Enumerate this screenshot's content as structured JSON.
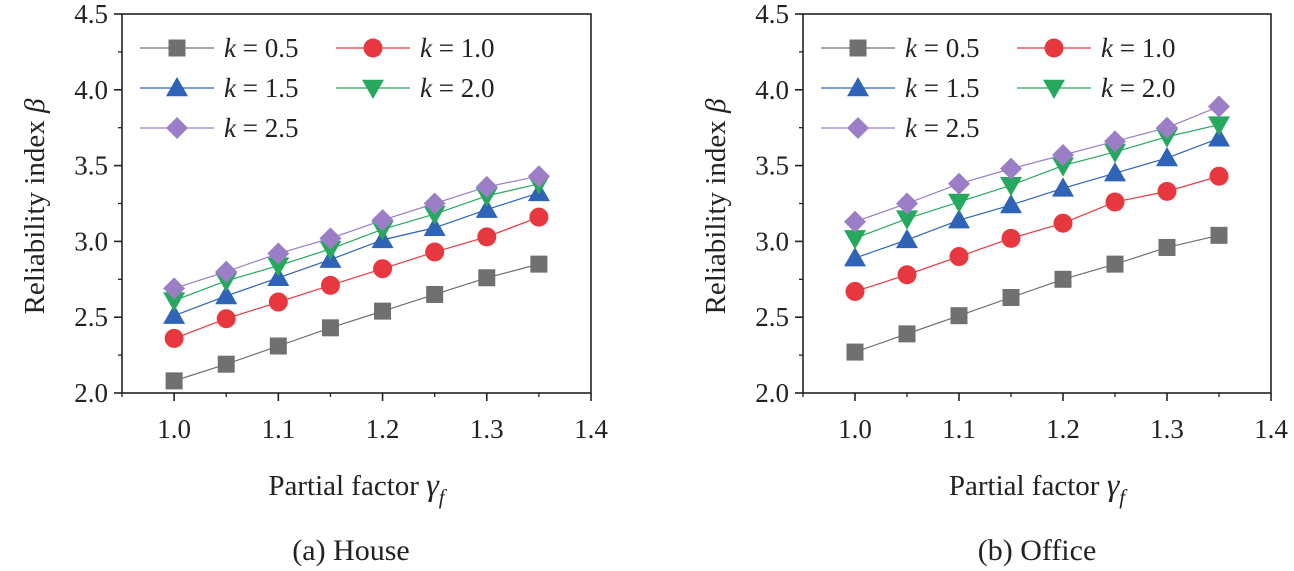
{
  "chart_data": [
    {
      "type": "line",
      "caption": "(a) House",
      "xlabel": "Partial factor",
      "xlabel_symbol": "γ",
      "xlabel_subscript": "f",
      "ylabel": "Reliability index",
      "ylabel_symbol": "β",
      "xlim": [
        0.95,
        1.4
      ],
      "ylim": [
        2.0,
        4.5
      ],
      "xticks": [
        "1.0",
        "1.1",
        "1.2",
        "1.3",
        "1.4"
      ],
      "yticks": [
        "2.0",
        "2.5",
        "3.0",
        "3.5",
        "4.0",
        "4.5"
      ],
      "x": [
        1.0,
        1.05,
        1.1,
        1.15,
        1.2,
        1.25,
        1.3,
        1.35
      ],
      "legend_position": "top-left",
      "series": [
        {
          "name": "k = 0.5",
          "k_symbol": "k",
          "k_value": "= 0.5",
          "marker": "square",
          "color": "#707070",
          "values": [
            2.08,
            2.19,
            2.31,
            2.43,
            2.54,
            2.65,
            2.76,
            2.85
          ]
        },
        {
          "name": "k = 1.0",
          "k_symbol": "k",
          "k_value": "= 1.0",
          "marker": "circle",
          "color": "#e8383f",
          "values": [
            2.36,
            2.49,
            2.6,
            2.71,
            2.82,
            2.93,
            3.03,
            3.16
          ]
        },
        {
          "name": "k = 1.5",
          "k_symbol": "k",
          "k_value": "= 1.5",
          "marker": "triangle-up",
          "color": "#2e63b8",
          "values": [
            2.51,
            2.64,
            2.76,
            2.88,
            3.01,
            3.09,
            3.21,
            3.32
          ]
        },
        {
          "name": "k = 2.0",
          "k_symbol": "k",
          "k_value": "= 2.0",
          "marker": "triangle-down",
          "color": "#27a85f",
          "values": [
            2.61,
            2.74,
            2.84,
            2.95,
            3.08,
            3.18,
            3.3,
            3.38
          ]
        },
        {
          "name": "k = 2.5",
          "k_symbol": "k",
          "k_value": "= 2.5",
          "marker": "diamond",
          "color": "#9b7ec6",
          "values": [
            2.69,
            2.8,
            2.92,
            3.02,
            3.14,
            3.25,
            3.36,
            3.43
          ]
        }
      ]
    },
    {
      "type": "line",
      "caption": "(b) Office",
      "xlabel": "Partial factor",
      "xlabel_symbol": "γ",
      "xlabel_subscript": "f",
      "ylabel": "Reliability index",
      "ylabel_symbol": "β",
      "xlim": [
        0.95,
        1.4
      ],
      "ylim": [
        2.0,
        4.5
      ],
      "xticks": [
        "1.0",
        "1.1",
        "1.2",
        "1.3",
        "1.4"
      ],
      "yticks": [
        "2.0",
        "2.5",
        "3.0",
        "3.5",
        "4.0",
        "4.5"
      ],
      "x": [
        1.0,
        1.05,
        1.1,
        1.15,
        1.2,
        1.25,
        1.3,
        1.35
      ],
      "legend_position": "top-left",
      "series": [
        {
          "name": "k = 0.5",
          "k_symbol": "k",
          "k_value": "= 0.5",
          "marker": "square",
          "color": "#707070",
          "values": [
            2.27,
            2.39,
            2.51,
            2.63,
            2.75,
            2.85,
            2.96,
            3.04
          ]
        },
        {
          "name": "k = 1.0",
          "k_symbol": "k",
          "k_value": "= 1.0",
          "marker": "circle",
          "color": "#e8383f",
          "values": [
            2.67,
            2.78,
            2.9,
            3.02,
            3.12,
            3.26,
            3.33,
            3.43
          ]
        },
        {
          "name": "k = 1.5",
          "k_symbol": "k",
          "k_value": "= 1.5",
          "marker": "triangle-up",
          "color": "#2e63b8",
          "values": [
            2.89,
            3.01,
            3.14,
            3.24,
            3.35,
            3.45,
            3.55,
            3.68
          ]
        },
        {
          "name": "k = 2.0",
          "k_symbol": "k",
          "k_value": "= 2.0",
          "marker": "triangle-down",
          "color": "#27a85f",
          "values": [
            3.02,
            3.15,
            3.26,
            3.37,
            3.5,
            3.59,
            3.69,
            3.77
          ]
        },
        {
          "name": "k = 2.5",
          "k_symbol": "k",
          "k_value": "= 2.5",
          "marker": "diamond",
          "color": "#9b7ec6",
          "values": [
            3.13,
            3.25,
            3.38,
            3.48,
            3.57,
            3.66,
            3.75,
            3.89
          ]
        }
      ]
    }
  ]
}
